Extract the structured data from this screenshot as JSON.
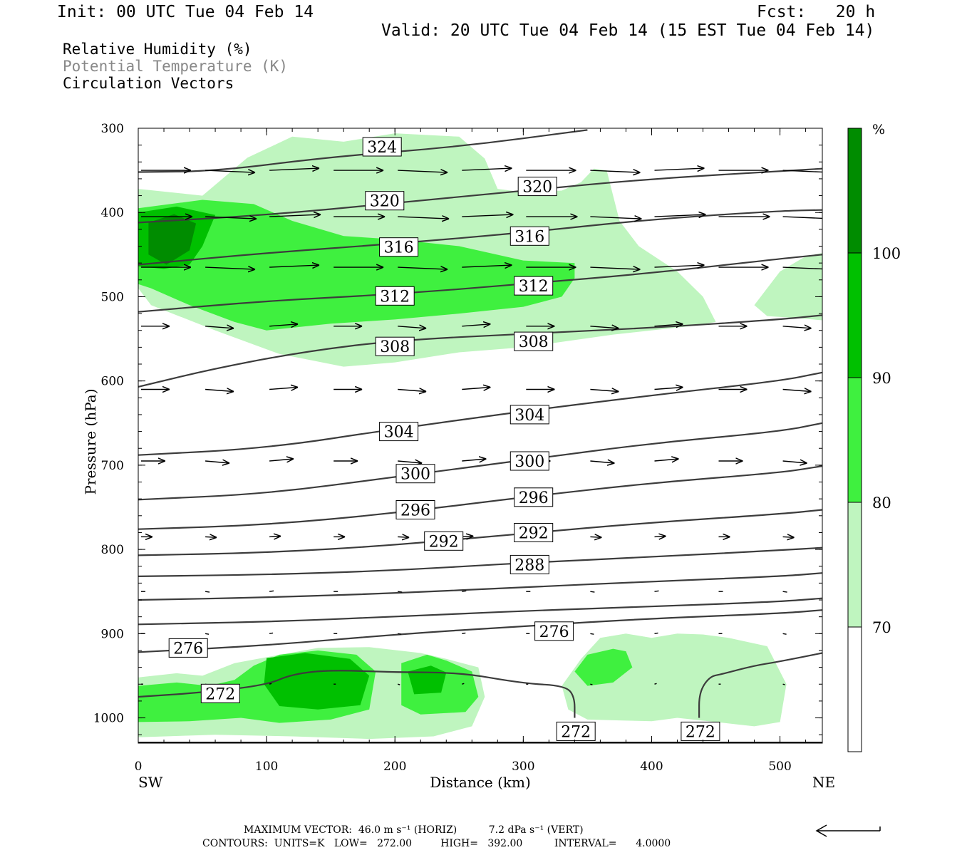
{
  "header": {
    "init": "Init: 00 UTC Tue 04 Feb 14",
    "fcst": "Fcst:   20 h",
    "valid": "Valid: 20 UTC Tue 04 Feb 14 (15 EST Tue 04 Feb 14)"
  },
  "fields": {
    "rh": "Relative Humidity (%)",
    "theta": "Potential Temperature (K)",
    "vectors": "Circulation Vectors"
  },
  "colors": {
    "rh70": "#bff5bf",
    "rh80": "#3ff03f",
    "rh90": "#00c000",
    "rh100": "#008c00",
    "contour": "#3c3c3c"
  },
  "chart_data": {
    "type": "cross-section",
    "xlabel": "Distance (km)",
    "ylabel": "Pressure (hPa)",
    "x_ticks": [
      "0",
      "100",
      "200",
      "300",
      "400",
      "500"
    ],
    "y_ticks": [
      "300",
      "400",
      "500",
      "600",
      "700",
      "800",
      "900",
      "1000"
    ],
    "xlim": [
      0,
      533
    ],
    "ylim": [
      1030,
      300
    ],
    "left_end": "SW",
    "right_end": "NE",
    "colorbar": {
      "unit": "%",
      "levels": [
        "70",
        "80",
        "90",
        "100"
      ]
    },
    "theta_contours": [
      {
        "value": 324,
        "points": [
          [
            0,
            352
          ],
          [
            60,
            351
          ],
          [
            150,
            334
          ],
          [
            250,
            322
          ],
          [
            350,
            302
          ]
        ]
      },
      {
        "value": 320,
        "points": [
          [
            0,
            412
          ],
          [
            100,
            403
          ],
          [
            200,
            389
          ],
          [
            300,
            374
          ],
          [
            400,
            360
          ],
          [
            500,
            351
          ],
          [
            533,
            348
          ]
        ]
      },
      {
        "value": 316,
        "points": [
          [
            0,
            462
          ],
          [
            100,
            448
          ],
          [
            200,
            437
          ],
          [
            300,
            424
          ],
          [
            400,
            408
          ],
          [
            500,
            398
          ],
          [
            533,
            397
          ]
        ]
      },
      {
        "value": 312,
        "points": [
          [
            0,
            518
          ],
          [
            100,
            505
          ],
          [
            200,
            497
          ],
          [
            300,
            485
          ],
          [
            400,
            472
          ],
          [
            500,
            455
          ],
          [
            533,
            450
          ]
        ]
      },
      {
        "value": 308,
        "points": [
          [
            0,
            607
          ],
          [
            60,
            585
          ],
          [
            130,
            565
          ],
          [
            200,
            552
          ],
          [
            300,
            544
          ],
          [
            400,
            537
          ],
          [
            500,
            527
          ],
          [
            533,
            522
          ]
        ]
      },
      {
        "value": 304,
        "points": [
          [
            0,
            688
          ],
          [
            100,
            680
          ],
          [
            200,
            657
          ],
          [
            300,
            636
          ],
          [
            400,
            617
          ],
          [
            500,
            600
          ],
          [
            533,
            590
          ]
        ]
      },
      {
        "value": 300,
        "points": [
          [
            0,
            741
          ],
          [
            100,
            734
          ],
          [
            200,
            714
          ],
          [
            300,
            694
          ],
          [
            400,
            674
          ],
          [
            500,
            660
          ],
          [
            533,
            650
          ]
        ]
      },
      {
        "value": 296,
        "points": [
          [
            0,
            776
          ],
          [
            100,
            771
          ],
          [
            200,
            757
          ],
          [
            300,
            738
          ],
          [
            400,
            721
          ],
          [
            500,
            709
          ],
          [
            533,
            701
          ]
        ]
      },
      {
        "value": 292,
        "points": [
          [
            0,
            807
          ],
          [
            100,
            804
          ],
          [
            200,
            795
          ],
          [
            300,
            781
          ],
          [
            400,
            768
          ],
          [
            500,
            758
          ],
          [
            533,
            753
          ]
        ]
      },
      {
        "value": 288,
        "points": [
          [
            0,
            832
          ],
          [
            100,
            830
          ],
          [
            200,
            825
          ],
          [
            300,
            816
          ],
          [
            400,
            809
          ],
          [
            500,
            801
          ],
          [
            533,
            798
          ]
        ]
      },
      {
        "value": 284,
        "points": [
          [
            0,
            860
          ],
          [
            100,
            857
          ],
          [
            200,
            852
          ],
          [
            300,
            845
          ],
          [
            400,
            838
          ],
          [
            500,
            832
          ],
          [
            533,
            828
          ]
        ]
      },
      {
        "value": 280,
        "points": [
          [
            0,
            889
          ],
          [
            100,
            886
          ],
          [
            200,
            880
          ],
          [
            300,
            873
          ],
          [
            400,
            868
          ],
          [
            500,
            862
          ],
          [
            533,
            858
          ]
        ]
      },
      {
        "value": 276,
        "points": [
          [
            0,
            922
          ],
          [
            100,
            914
          ],
          [
            200,
            901
          ],
          [
            300,
            891
          ],
          [
            400,
            882
          ],
          [
            500,
            876
          ],
          [
            533,
            872
          ]
        ]
      },
      {
        "value": 272,
        "points": [
          [
            0,
            975
          ],
          [
            50,
            970
          ],
          [
            100,
            961
          ],
          [
            120,
            948
          ],
          [
            150,
            943
          ],
          [
            200,
            946
          ],
          [
            250,
            946
          ],
          [
            300,
            959
          ],
          [
            333,
            962
          ],
          [
            340,
            975
          ],
          [
            340,
            1000
          ]
        ]
      },
      {
        "value": 272,
        "points": [
          [
            437,
            1000
          ],
          [
            437,
            970
          ],
          [
            445,
            951
          ],
          [
            455,
            948
          ],
          [
            480,
            938
          ],
          [
            500,
            933
          ],
          [
            533,
            923
          ]
        ]
      }
    ],
    "contour_labels": [
      {
        "value": "324",
        "x": 190,
        "p": 322
      },
      {
        "value": "320",
        "x": 192,
        "p": 386
      },
      {
        "value": "320",
        "x": 311,
        "p": 369
      },
      {
        "value": "316",
        "x": 203,
        "p": 441
      },
      {
        "value": "316",
        "x": 305,
        "p": 428
      },
      {
        "value": "312",
        "x": 200,
        "p": 499
      },
      {
        "value": "312",
        "x": 308,
        "p": 487
      },
      {
        "value": "308",
        "x": 200,
        "p": 559
      },
      {
        "value": "308",
        "x": 308,
        "p": 553
      },
      {
        "value": "304",
        "x": 203,
        "p": 660
      },
      {
        "value": "304",
        "x": 305,
        "p": 640
      },
      {
        "value": "300",
        "x": 216,
        "p": 710
      },
      {
        "value": "300",
        "x": 305,
        "p": 695
      },
      {
        "value": "296",
        "x": 216,
        "p": 753
      },
      {
        "value": "296",
        "x": 308,
        "p": 738
      },
      {
        "value": "292",
        "x": 238,
        "p": 790
      },
      {
        "value": "292",
        "x": 308,
        "p": 780
      },
      {
        "value": "288",
        "x": 305,
        "p": 818
      },
      {
        "value": "276",
        "x": 39,
        "p": 917
      },
      {
        "value": "276",
        "x": 324,
        "p": 897
      },
      {
        "value": "272",
        "x": 64,
        "p": 971
      },
      {
        "value": "272",
        "x": 341,
        "p": 1016
      },
      {
        "value": "272",
        "x": 438,
        "p": 1016
      }
    ],
    "vector_levels": [
      350,
      405,
      465,
      535,
      610,
      695,
      785,
      850,
      900,
      960
    ],
    "vector_x": [
      0,
      50,
      100,
      150,
      200,
      250,
      300,
      350,
      400,
      450,
      500
    ],
    "rh_regions": [
      {
        "level": 70,
        "points": [
          [
            85,
            335
          ],
          [
            120,
            310
          ],
          [
            160,
            316
          ],
          [
            200,
            306
          ],
          [
            250,
            310
          ],
          [
            270,
            336
          ],
          [
            280,
            372
          ],
          [
            300,
            376
          ],
          [
            330,
            374
          ],
          [
            345,
            364
          ],
          [
            355,
            348
          ],
          [
            365,
            350
          ],
          [
            370,
            380
          ],
          [
            375,
            410
          ],
          [
            390,
            440
          ],
          [
            420,
            470
          ],
          [
            440,
            500
          ],
          [
            450,
            530
          ],
          [
            430,
            535
          ],
          [
            370,
            545
          ],
          [
            300,
            560
          ],
          [
            250,
            566
          ],
          [
            200,
            578
          ],
          [
            160,
            583
          ],
          [
            110,
            568
          ],
          [
            60,
            540
          ],
          [
            10,
            510
          ],
          [
            0,
            490
          ],
          [
            0,
            372
          ],
          [
            50,
            380
          ]
        ]
      },
      {
        "level": 70,
        "points": [
          [
            480,
            510
          ],
          [
            500,
            470
          ],
          [
            520,
            452
          ],
          [
            533,
            448
          ],
          [
            533,
            528
          ],
          [
            510,
            525
          ],
          [
            490,
            523
          ]
        ]
      },
      {
        "level": 70,
        "points": [
          [
            0,
            952
          ],
          [
            30,
            947
          ],
          [
            50,
            950
          ],
          [
            75,
            935
          ],
          [
            100,
            928
          ],
          [
            140,
            917
          ],
          [
            180,
            916
          ],
          [
            220,
            923
          ],
          [
            240,
            930
          ],
          [
            265,
            940
          ],
          [
            270,
            975
          ],
          [
            260,
            1010
          ],
          [
            230,
            1022
          ],
          [
            180,
            1025
          ],
          [
            120,
            1022
          ],
          [
            60,
            1020
          ],
          [
            0,
            1023
          ]
        ]
      },
      {
        "level": 70,
        "points": [
          [
            330,
            962
          ],
          [
            345,
            930
          ],
          [
            360,
            905
          ],
          [
            380,
            900
          ],
          [
            400,
            905
          ],
          [
            420,
            900
          ],
          [
            440,
            901
          ],
          [
            460,
            905
          ],
          [
            490,
            915
          ],
          [
            505,
            960
          ],
          [
            500,
            1005
          ],
          [
            480,
            1010
          ],
          [
            450,
            1005
          ],
          [
            420,
            1000
          ],
          [
            400,
            1004
          ],
          [
            375,
            1003
          ],
          [
            350,
            1002
          ],
          [
            335,
            990
          ]
        ]
      },
      {
        "level": 80,
        "points": [
          [
            0,
            395
          ],
          [
            50,
            385
          ],
          [
            90,
            390
          ],
          [
            120,
            410
          ],
          [
            160,
            428
          ],
          [
            200,
            432
          ],
          [
            250,
            440
          ],
          [
            300,
            457
          ],
          [
            340,
            460
          ],
          [
            340,
            478
          ],
          [
            330,
            500
          ],
          [
            300,
            512
          ],
          [
            250,
            520
          ],
          [
            200,
            527
          ],
          [
            150,
            532
          ],
          [
            100,
            540
          ],
          [
            75,
            530
          ],
          [
            40,
            510
          ],
          [
            10,
            490
          ],
          [
            0,
            485
          ]
        ]
      },
      {
        "level": 80,
        "points": [
          [
            0,
            962
          ],
          [
            30,
            958
          ],
          [
            55,
            962
          ],
          [
            75,
            955
          ],
          [
            90,
            938
          ],
          [
            110,
            925
          ],
          [
            140,
            920
          ],
          [
            170,
            925
          ],
          [
            185,
            945
          ],
          [
            180,
            990
          ],
          [
            150,
            1002
          ],
          [
            110,
            1006
          ],
          [
            80,
            1000
          ],
          [
            40,
            1004
          ],
          [
            0,
            1005
          ]
        ]
      },
      {
        "level": 80,
        "points": [
          [
            205,
            935
          ],
          [
            225,
            925
          ],
          [
            240,
            932
          ],
          [
            260,
            945
          ],
          [
            265,
            975
          ],
          [
            255,
            993
          ],
          [
            220,
            996
          ],
          [
            205,
            985
          ]
        ]
      },
      {
        "level": 80,
        "points": [
          [
            340,
            945
          ],
          [
            350,
            925
          ],
          [
            370,
            918
          ],
          [
            380,
            921
          ],
          [
            385,
            940
          ],
          [
            370,
            958
          ],
          [
            350,
            962
          ]
        ]
      },
      {
        "level": 90,
        "points": [
          [
            0,
            400
          ],
          [
            30,
            393
          ],
          [
            60,
            403
          ],
          [
            50,
            440
          ],
          [
            40,
            462
          ],
          [
            20,
            467
          ],
          [
            0,
            464
          ]
        ]
      },
      {
        "level": 90,
        "points": [
          [
            100,
            929
          ],
          [
            130,
            923
          ],
          [
            165,
            930
          ],
          [
            180,
            950
          ],
          [
            173,
            985
          ],
          [
            140,
            990
          ],
          [
            110,
            986
          ],
          [
            98,
            960
          ]
        ]
      },
      {
        "level": 90,
        "points": [
          [
            210,
            945
          ],
          [
            228,
            938
          ],
          [
            240,
            946
          ],
          [
            236,
            970
          ],
          [
            215,
            972
          ]
        ]
      },
      {
        "level": 100,
        "points": [
          [
            8,
            412
          ],
          [
            28,
            402
          ],
          [
            45,
            413
          ],
          [
            40,
            445
          ],
          [
            22,
            462
          ],
          [
            8,
            450
          ]
        ]
      }
    ]
  },
  "footer": {
    "line1": "MAXIMUM VECTOR:  46.0 m s⁻¹ (HORIZ)          7.2 dPa s⁻¹ (VERT)",
    "line2": "CONTOURS:  UNITS=K   LOW=   272.00         HIGH=   392.00          INTERVAL=      4.0000"
  }
}
